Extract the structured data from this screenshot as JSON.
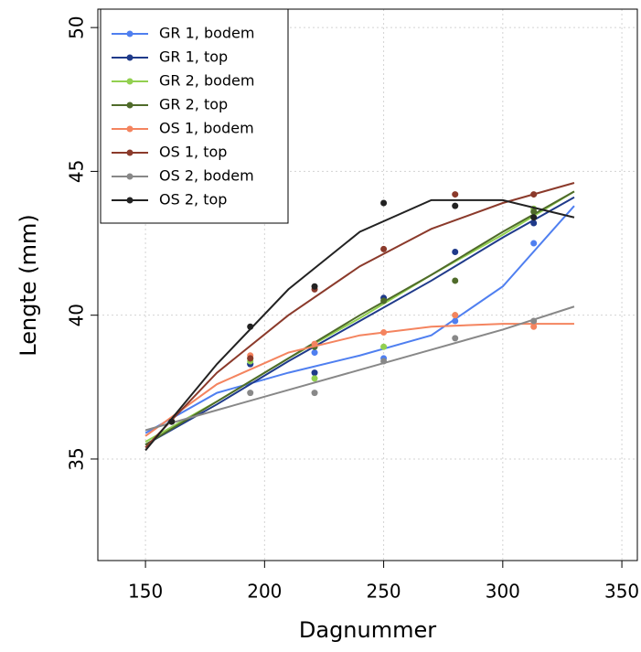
{
  "chart_data": {
    "type": "scatter",
    "xlabel": "Dagnummer",
    "ylabel": "Lengte (mm)",
    "xlim": [
      130,
      356.5
    ],
    "ylim": [
      31.47,
      50.64
    ],
    "xticks": [
      150,
      200,
      250,
      300,
      350
    ],
    "yticks": [
      35,
      40,
      45,
      50
    ],
    "grid": true,
    "legend": "upper left",
    "series": [
      {
        "name": "GR 1, bodem",
        "color": "#4f7ff0",
        "x": [
          161,
          194,
          221,
          250,
          280,
          313
        ],
        "values": [
          36.3,
          38.3,
          38.7,
          38.5,
          39.8,
          42.5
        ],
        "fit_x": [
          150,
          180,
          210,
          240,
          270,
          300,
          330
        ],
        "fit_values": [
          35.9,
          37.3,
          38.0,
          38.6,
          39.3,
          41.0,
          43.8
        ]
      },
      {
        "name": "GR 1, top",
        "color": "#1f3a8a",
        "x": [
          161,
          194,
          221,
          250,
          280,
          313
        ],
        "values": [
          36.3,
          38.3,
          38.0,
          40.6,
          42.2,
          43.2
        ],
        "fit_x": [
          150,
          180,
          210,
          240,
          270,
          300,
          330
        ],
        "fit_values": [
          35.5,
          36.9,
          38.4,
          39.8,
          41.2,
          42.7,
          44.1
        ]
      },
      {
        "name": "GR 2, bodem",
        "color": "#92d050",
        "x": [
          161,
          194,
          221,
          250,
          280,
          313
        ],
        "values": [
          36.3,
          38.4,
          37.8,
          38.9,
          40.0,
          43.7
        ],
        "fit_x": [
          150,
          180,
          210,
          240,
          270,
          300,
          330
        ],
        "fit_values": [
          35.6,
          37.0,
          38.5,
          39.9,
          41.4,
          42.8,
          44.3
        ]
      },
      {
        "name": "GR 2, top",
        "color": "#4f6b2a",
        "x": [
          161,
          194,
          221,
          250,
          280,
          313
        ],
        "values": [
          36.3,
          38.5,
          38.9,
          40.5,
          41.2,
          43.6
        ],
        "fit_x": [
          150,
          180,
          210,
          240,
          270,
          300,
          330
        ],
        "fit_values": [
          35.5,
          37.0,
          38.5,
          40.0,
          41.4,
          42.9,
          44.3
        ]
      },
      {
        "name": "OS 1, bodem",
        "color": "#f4845f",
        "x": [
          161,
          194,
          221,
          250,
          280,
          313
        ],
        "values": [
          36.3,
          38.6,
          39.0,
          39.4,
          40.0,
          39.6
        ],
        "fit_x": [
          150,
          180,
          210,
          240,
          270,
          300,
          330
        ],
        "fit_values": [
          35.8,
          37.6,
          38.7,
          39.3,
          39.6,
          39.7,
          39.7
        ]
      },
      {
        "name": "OS 1, top",
        "color": "#8b3a2b",
        "x": [
          161,
          194,
          221,
          250,
          280,
          313
        ],
        "values": [
          36.3,
          38.5,
          40.9,
          42.3,
          44.2,
          44.2
        ],
        "fit_x": [
          150,
          180,
          210,
          240,
          270,
          300,
          330
        ],
        "fit_values": [
          35.4,
          38.0,
          40.0,
          41.7,
          43.0,
          43.9,
          44.6
        ]
      },
      {
        "name": "OS 2, bodem",
        "color": "#888888",
        "x": [
          161,
          194,
          221,
          250,
          280,
          313
        ],
        "values": [
          36.3,
          37.3,
          37.3,
          38.4,
          39.2,
          39.8
        ],
        "fit_x": [
          150,
          180,
          210,
          240,
          270,
          300,
          330
        ],
        "fit_values": [
          36.0,
          36.7,
          37.4,
          38.1,
          38.8,
          39.5,
          40.3
        ]
      },
      {
        "name": "OS 2, top",
        "color": "#222222",
        "x": [
          161,
          194,
          221,
          250,
          280,
          313
        ],
        "values": [
          36.3,
          39.6,
          41.0,
          43.9,
          43.8,
          43.4
        ],
        "fit_x": [
          150,
          180,
          210,
          240,
          270,
          300,
          330
        ],
        "fit_values": [
          35.3,
          38.3,
          40.9,
          42.9,
          44.0,
          44.0,
          43.4
        ]
      }
    ]
  }
}
